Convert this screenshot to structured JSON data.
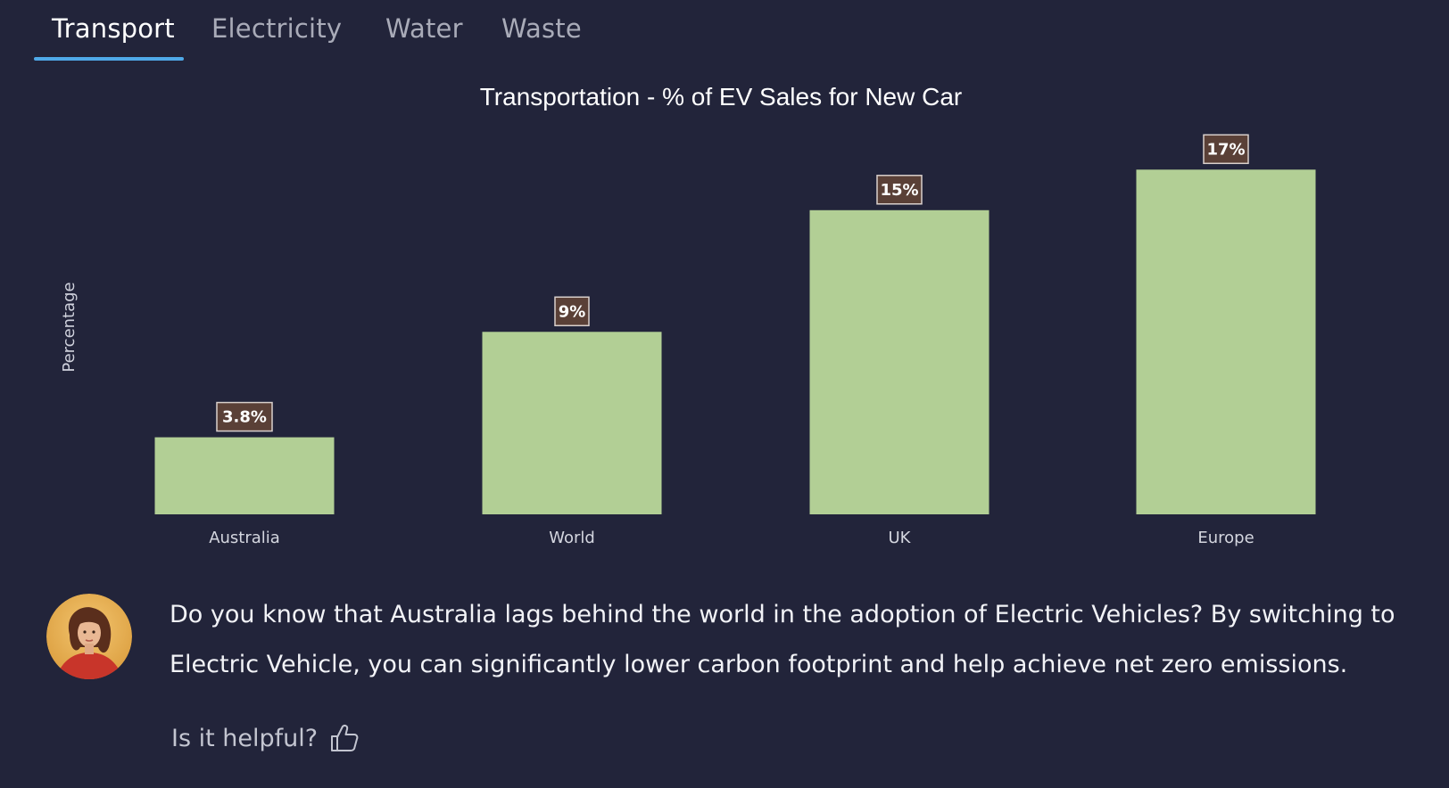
{
  "tabs": [
    {
      "label": "Transport",
      "active": true
    },
    {
      "label": "Electricity",
      "active": false
    },
    {
      "label": "Water",
      "active": false
    },
    {
      "label": "Waste",
      "active": false
    }
  ],
  "chart_data": {
    "type": "bar",
    "title": "Transportation - % of EV Sales for New Car",
    "xlabel": "",
    "ylabel": "Percentage",
    "categories": [
      "Australia",
      "World",
      "UK",
      "Europe"
    ],
    "values": [
      3.8,
      9,
      15,
      17
    ],
    "data_labels": [
      "3.8%",
      "9%",
      "15%",
      "17%"
    ],
    "ylim": [
      0,
      18.2
    ],
    "grid": false,
    "legend": "none",
    "bar_color": "#b2cf95",
    "label_bg": "#5a4037"
  },
  "message": {
    "text": "Do you know that Australia lags behind the world in the adoption of Electric Vehicles? By switching to Electric Vehicle, you can significantly lower carbon footprint and help achieve net zero emissions."
  },
  "feedback": {
    "label": "Is it helpful?",
    "icon": "thumbs-up-icon"
  },
  "colors": {
    "background": "#22243a",
    "accent": "#4fa9e8"
  }
}
